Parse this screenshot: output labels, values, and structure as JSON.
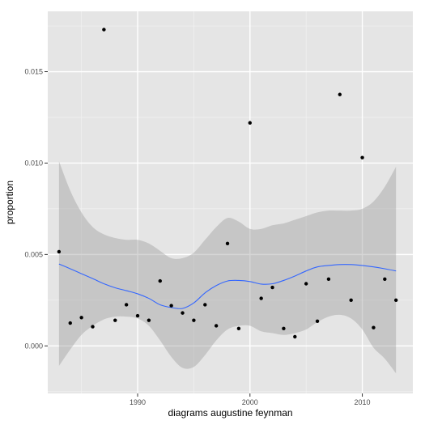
{
  "chart_data": {
    "type": "scatter",
    "title": "",
    "xlabel": "diagrams augustine feynman",
    "ylabel": "proportion",
    "xlim": [
      1982,
      2014.5
    ],
    "ylim": [
      -0.0026,
      0.0183
    ],
    "x_ticks": [
      1990,
      2000,
      2010
    ],
    "x_tick_labels": [
      "1990",
      "2000",
      "2010"
    ],
    "y_ticks": [
      0.0,
      0.005,
      0.01,
      0.015
    ],
    "y_tick_labels": [
      "0.000",
      "0.005",
      "0.010",
      "0.015"
    ],
    "grid": true,
    "legend": "none",
    "points": {
      "x": [
        1983,
        1984,
        1985,
        1986,
        1987,
        1988,
        1989,
        1990,
        1991,
        1992,
        1993,
        1994,
        1995,
        1996,
        1997,
        1998,
        1999,
        2000,
        2001,
        2002,
        2003,
        2004,
        2005,
        2006,
        2007,
        2008,
        2009,
        2010,
        2011,
        2012,
        2013
      ],
      "y": [
        0.00515,
        0.00125,
        0.00155,
        0.00105,
        0.0173,
        0.0014,
        0.00225,
        0.00165,
        0.0014,
        0.00355,
        0.0022,
        0.0018,
        0.0014,
        0.00225,
        0.0011,
        0.0056,
        0.00095,
        0.0122,
        0.0026,
        0.0032,
        0.00095,
        0.0005,
        0.0034,
        0.00135,
        0.00365,
        0.01375,
        0.0025,
        0.0103,
        0.001,
        0.00365,
        0.0025
      ]
    },
    "smooth": {
      "x": [
        1983,
        1984,
        1985,
        1986,
        1987,
        1988,
        1989,
        1990,
        1991,
        1992,
        1993,
        1994,
        1995,
        1996,
        1997,
        1998,
        1999,
        2000,
        2001,
        2002,
        2003,
        2004,
        2005,
        2006,
        2007,
        2008,
        2009,
        2010,
        2011,
        2012,
        2013
      ],
      "y": [
        0.00448,
        0.00422,
        0.00395,
        0.00368,
        0.0034,
        0.00318,
        0.00302,
        0.00285,
        0.0026,
        0.00225,
        0.0021,
        0.00205,
        0.00235,
        0.0029,
        0.0033,
        0.00355,
        0.00358,
        0.00352,
        0.00338,
        0.0034,
        0.00358,
        0.00382,
        0.0041,
        0.00432,
        0.0044,
        0.00445,
        0.00445,
        0.0044,
        0.00432,
        0.00422,
        0.0041
      ],
      "lower": [
        -0.0011,
        -0.0002,
        0.0006,
        0.0011,
        0.00145,
        0.0016,
        0.0016,
        0.0015,
        0.0011,
        0.0003,
        -0.0006,
        -0.0012,
        -0.00115,
        -0.0005,
        0.0003,
        0.0009,
        0.0011,
        0.0011,
        0.0008,
        0.0007,
        0.0006,
        0.0007,
        0.0009,
        0.0013,
        0.0016,
        0.0017,
        0.0015,
        0.0009,
        -0.0001,
        -0.0007,
        -0.0015
      ],
      "upper": [
        0.0101,
        0.0085,
        0.0073,
        0.0065,
        0.0061,
        0.0059,
        0.0058,
        0.0058,
        0.0056,
        0.0052,
        0.0048,
        0.0048,
        0.0051,
        0.0058,
        0.0065,
        0.007,
        0.0068,
        0.0064,
        0.0064,
        0.0066,
        0.0067,
        0.0069,
        0.0071,
        0.0073,
        0.0074,
        0.0074,
        0.0074,
        0.0075,
        0.0079,
        0.0087,
        0.0098
      ]
    },
    "colors": {
      "panel": "#e5e5e5",
      "grid_major": "#ffffff",
      "grid_minor": "#f2f2f2",
      "points": "#000000",
      "smooth_line": "#3366ff",
      "ribbon": "#999999"
    }
  }
}
